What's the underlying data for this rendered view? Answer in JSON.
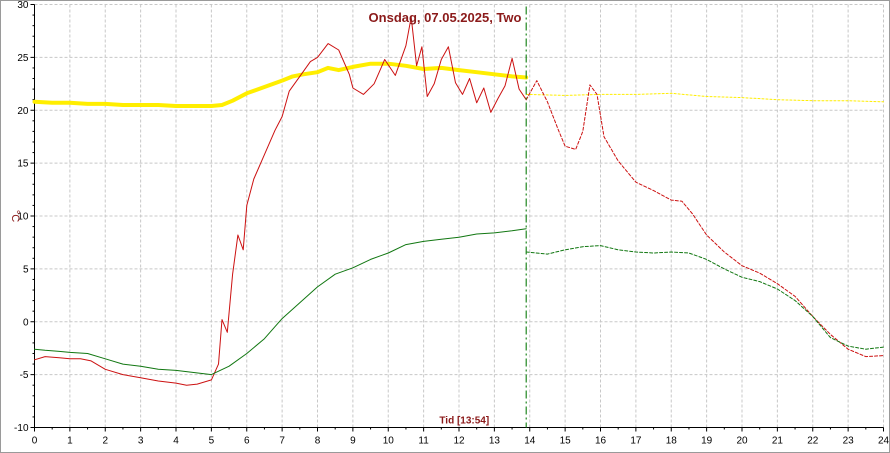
{
  "chart_data": {
    "type": "line",
    "title": "Onsdag, 07.05.2025, Two",
    "ylabel": "°C",
    "xlim": [
      0,
      24
    ],
    "ylim": [
      -10,
      30
    ],
    "x_ticks": [
      0,
      1,
      2,
      3,
      4,
      5,
      6,
      7,
      8,
      9,
      10,
      11,
      12,
      13,
      14,
      15,
      16,
      17,
      18,
      19,
      20,
      21,
      22,
      23,
      24
    ],
    "y_ticks": [
      -10,
      -5,
      0,
      5,
      10,
      15,
      20,
      25,
      30
    ],
    "grid": true,
    "current_time": 13.9,
    "current_time_label": "Tid [13:54]",
    "series": [
      {
        "color": "#ffee00",
        "style": "thick",
        "x": [
          0,
          0.5,
          1,
          1.5,
          2,
          2.5,
          3,
          3.5,
          4,
          4.5,
          5,
          5.3,
          5.6,
          6,
          6.5,
          7,
          7.3,
          7.6,
          8,
          8.3,
          8.6,
          9,
          9.5,
          10,
          10.5,
          11,
          11.5,
          12,
          12.5,
          13,
          13.5,
          13.9
        ],
        "y": [
          20.8,
          20.7,
          20.7,
          20.6,
          20.6,
          20.5,
          20.5,
          20.5,
          20.4,
          20.4,
          20.4,
          20.5,
          20.9,
          21.6,
          22.2,
          22.8,
          23.2,
          23.4,
          23.6,
          24.0,
          23.8,
          24.1,
          24.4,
          24.4,
          24.2,
          23.9,
          24.0,
          23.8,
          23.6,
          23.4,
          23.2,
          23.1
        ]
      },
      {
        "color": "#ffee00",
        "style": "forecast",
        "x": [
          13.9,
          15,
          16,
          17,
          18,
          19,
          20,
          21,
          22,
          23,
          24
        ],
        "y": [
          21.5,
          21.4,
          21.5,
          21.5,
          21.6,
          21.3,
          21.2,
          21.0,
          20.9,
          20.9,
          20.8
        ],
        "dashed": true
      },
      {
        "color": "#cc1111",
        "style": "thin",
        "x": [
          0,
          0.3,
          0.7,
          1,
          1.3,
          1.6,
          2,
          2.5,
          3,
          3.5,
          4,
          4.3,
          4.6,
          5,
          5.2,
          5.3,
          5.45,
          5.6,
          5.75,
          5.9,
          6,
          6.2,
          6.5,
          6.8,
          7,
          7.2,
          7.5,
          7.8,
          8,
          8.3,
          8.6,
          8.9,
          9,
          9.3,
          9.6,
          9.9,
          10.2,
          10.5,
          10.65,
          10.8,
          10.95,
          11.1,
          11.3,
          11.5,
          11.7,
          11.9,
          12.1,
          12.3,
          12.5,
          12.7,
          12.9,
          13.1,
          13.3,
          13.5,
          13.7,
          13.9
        ],
        "y": [
          -3.6,
          -3.3,
          -3.4,
          -3.5,
          -3.5,
          -3.7,
          -4.5,
          -5.0,
          -5.3,
          -5.6,
          -5.8,
          -6.0,
          -5.9,
          -5.5,
          -4.0,
          0.2,
          -1.0,
          4.5,
          8.2,
          6.8,
          11.0,
          13.5,
          15.8,
          18.1,
          19.4,
          21.8,
          23.2,
          24.6,
          25.0,
          26.3,
          25.7,
          23.4,
          22.1,
          21.5,
          22.5,
          24.8,
          23.3,
          26.1,
          28.8,
          24.2,
          26.0,
          21.3,
          22.5,
          24.8,
          26.0,
          22.6,
          21.5,
          23.0,
          20.7,
          22.1,
          19.8,
          21.1,
          22.3,
          24.9,
          22.0,
          21.0
        ]
      },
      {
        "color": "#cc1111",
        "style": "forecast",
        "x": [
          13.9,
          14.2,
          14.5,
          14.8,
          15,
          15.3,
          15.5,
          15.7,
          15.9,
          16.1,
          16.5,
          17,
          17.5,
          18,
          18.3,
          18.6,
          19,
          19.5,
          20,
          20.5,
          21,
          21.5,
          22,
          22.5,
          23,
          23.5,
          24
        ],
        "y": [
          21.0,
          22.8,
          20.8,
          18.2,
          16.6,
          16.3,
          18.0,
          22.4,
          21.5,
          17.5,
          15.2,
          13.2,
          12.4,
          11.5,
          11.4,
          10.2,
          8.2,
          6.6,
          5.3,
          4.6,
          3.6,
          2.4,
          0.5,
          -1.2,
          -2.6,
          -3.3,
          -3.2
        ],
        "dashed": true
      },
      {
        "color": "#117711",
        "style": "thin",
        "x": [
          0,
          0.3,
          0.7,
          1,
          1.5,
          2,
          2.5,
          3,
          3.5,
          4,
          4.5,
          5,
          5.5,
          6,
          6.5,
          7,
          7.5,
          8,
          8.5,
          9,
          9.5,
          10,
          10.5,
          11,
          11.5,
          12,
          12.5,
          13,
          13.5,
          13.9
        ],
        "y": [
          -2.6,
          -2.7,
          -2.8,
          -2.9,
          -3.0,
          -3.5,
          -4.0,
          -4.2,
          -4.5,
          -4.6,
          -4.8,
          -5.0,
          -4.2,
          -3.0,
          -1.6,
          0.3,
          1.8,
          3.3,
          4.5,
          5.1,
          5.9,
          6.5,
          7.3,
          7.6,
          7.8,
          8.0,
          8.3,
          8.4,
          8.6,
          8.8
        ]
      },
      {
        "color": "#117711",
        "style": "forecast",
        "x": [
          13.9,
          14.5,
          15,
          15.5,
          16,
          16.5,
          17,
          17.5,
          18,
          18.5,
          19,
          19.5,
          20,
          20.5,
          21,
          21.5,
          22,
          22.5,
          23,
          23.5,
          24
        ],
        "y": [
          6.6,
          6.4,
          6.8,
          7.1,
          7.2,
          6.8,
          6.6,
          6.5,
          6.6,
          6.5,
          5.9,
          5.0,
          4.2,
          3.8,
          3.1,
          2.0,
          0.5,
          -1.5,
          -2.3,
          -2.6,
          -2.4
        ],
        "dashed": true
      }
    ]
  }
}
